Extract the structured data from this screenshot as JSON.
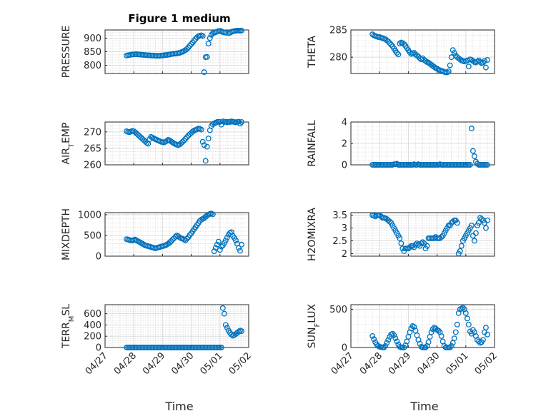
{
  "figure": {
    "title": "Figure 1 medium",
    "xlabel": "Time",
    "x_ticks": [
      "04/27",
      "04/28",
      "04/29",
      "04/30",
      "05/01",
      "05/02"
    ],
    "marker_color": "#0072BD"
  },
  "chart_data": [
    {
      "type": "scatter",
      "ylabel": "PRESSURE",
      "ylim": [
        770,
        930
      ],
      "yticks": [
        "800",
        "850",
        "900"
      ],
      "grid": true,
      "x": [
        0.75,
        0.8,
        0.85,
        0.9,
        0.95,
        1.0,
        1.05,
        1.1,
        1.15,
        1.2,
        1.25,
        1.3,
        1.35,
        1.4,
        1.45,
        1.5,
        1.55,
        1.6,
        1.65,
        1.7,
        1.75,
        1.8,
        1.85,
        1.9,
        1.95,
        2.0,
        2.05,
        2.1,
        2.15,
        2.2,
        2.25,
        2.3,
        2.35,
        2.4,
        2.45,
        2.5,
        2.55,
        2.6,
        2.65,
        2.7,
        2.75,
        2.8,
        2.85,
        2.9,
        2.95,
        3.0,
        3.05,
        3.1,
        3.15,
        3.2,
        3.25,
        3.3,
        3.35,
        3.4,
        3.45,
        3.5,
        3.55,
        3.6,
        3.65,
        3.7,
        3.75,
        3.8,
        3.85,
        3.9,
        3.95,
        4.0,
        4.05,
        4.1,
        4.15,
        4.2,
        4.3,
        4.35,
        4.4,
        4.45,
        4.5,
        4.55,
        4.6,
        4.65,
        4.7,
        4.75
      ],
      "y": [
        836,
        837,
        838,
        839,
        840,
        840,
        841,
        841,
        840,
        840,
        839,
        839,
        838,
        838,
        837,
        837,
        837,
        836,
        836,
        836,
        835,
        835,
        835,
        835,
        836,
        836,
        837,
        838,
        838,
        839,
        840,
        841,
        842,
        843,
        843,
        844,
        845,
        846,
        848,
        850,
        853,
        856,
        860,
        866,
        872,
        878,
        884,
        891,
        897,
        903,
        907,
        909,
        910,
        908,
        775,
        830,
        831,
        880,
        900,
        912,
        918,
        920,
        922,
        924,
        926,
        927,
        925,
        922,
        921,
        920,
        918,
        920,
        923,
        925,
        926,
        927,
        928,
        928,
        927,
        928
      ]
    },
    {
      "type": "scatter",
      "ylabel": "THETA",
      "ylim": [
        277,
        285
      ],
      "yticks": [
        "280",
        "285"
      ],
      "grid": true,
      "x": [
        0.75,
        0.8,
        0.85,
        0.9,
        0.95,
        1.0,
        1.05,
        1.1,
        1.15,
        1.2,
        1.25,
        1.3,
        1.35,
        1.4,
        1.45,
        1.5,
        1.55,
        1.6,
        1.65,
        1.7,
        1.75,
        1.8,
        1.85,
        1.9,
        1.95,
        2.0,
        2.05,
        2.1,
        2.15,
        2.2,
        2.25,
        2.3,
        2.35,
        2.4,
        2.45,
        2.5,
        2.55,
        2.6,
        2.65,
        2.7,
        2.75,
        2.8,
        2.85,
        2.9,
        2.95,
        3.0,
        3.05,
        3.1,
        3.15,
        3.2,
        3.25,
        3.3,
        3.35,
        3.4,
        3.45,
        3.5,
        3.55,
        3.6,
        3.65,
        3.7,
        3.75,
        3.8,
        3.85,
        3.9,
        3.95,
        4.0,
        4.05,
        4.1,
        4.15,
        4.2,
        4.25,
        4.3,
        4.35,
        4.4,
        4.45,
        4.5,
        4.55,
        4.6,
        4.65,
        4.7,
        4.75
      ],
      "y": [
        284.2,
        284.0,
        283.9,
        283.8,
        283.7,
        283.7,
        283.6,
        283.5,
        283.4,
        283.3,
        283.1,
        282.9,
        282.6,
        282.3,
        282.0,
        281.6,
        281.2,
        280.8,
        280.5,
        282.5,
        282.7,
        282.6,
        282.4,
        282.1,
        281.7,
        281.3,
        280.9,
        280.6,
        280.7,
        280.8,
        280.5,
        280.3,
        280.1,
        279.8,
        279.6,
        279.8,
        279.5,
        279.3,
        279.1,
        279.0,
        278.8,
        278.6,
        278.4,
        278.2,
        278.0,
        277.9,
        277.7,
        277.6,
        277.5,
        277.4,
        277.3,
        277.2,
        277.2,
        277.4,
        278.5,
        280.0,
        281.3,
        280.8,
        280.3,
        280.0,
        279.8,
        279.6,
        279.4,
        279.3,
        279.2,
        279.3,
        279.4,
        278.3,
        279.6,
        279.5,
        279.3,
        279.1,
        279.0,
        279.2,
        279.4,
        279.1,
        278.9,
        279.0,
        279.3,
        278.1,
        279.5
      ]
    },
    {
      "type": "scatter",
      "ylabel": "AIR_TEMP",
      "ylim": [
        260,
        273
      ],
      "yticks": [
        "260",
        "265",
        "270"
      ],
      "grid": true,
      "x": [
        0.75,
        0.8,
        0.85,
        0.9,
        0.95,
        1.0,
        1.05,
        1.1,
        1.15,
        1.2,
        1.25,
        1.3,
        1.35,
        1.4,
        1.45,
        1.5,
        1.55,
        1.6,
        1.65,
        1.7,
        1.75,
        1.8,
        1.85,
        1.9,
        1.95,
        2.0,
        2.05,
        2.1,
        2.15,
        2.2,
        2.25,
        2.3,
        2.35,
        2.4,
        2.45,
        2.5,
        2.55,
        2.6,
        2.65,
        2.7,
        2.75,
        2.8,
        2.85,
        2.9,
        2.95,
        3.0,
        3.05,
        3.1,
        3.15,
        3.2,
        3.25,
        3.3,
        3.35,
        3.4,
        3.45,
        3.5,
        3.55,
        3.6,
        3.65,
        3.7,
        3.75,
        3.8,
        3.85,
        3.9,
        3.95,
        4.0,
        4.05,
        4.1,
        4.15,
        4.2,
        4.25,
        4.3,
        4.35,
        4.4,
        4.45,
        4.5,
        4.55,
        4.6,
        4.65,
        4.7,
        4.75
      ],
      "y": [
        270.2,
        270.0,
        269.9,
        270.1,
        270.3,
        270.2,
        269.9,
        269.5,
        269.1,
        268.7,
        268.3,
        267.9,
        267.5,
        267.1,
        266.7,
        266.4,
        267.8,
        268.5,
        268.3,
        268.0,
        267.8,
        267.6,
        267.4,
        267.2,
        267.0,
        266.9,
        266.8,
        267.0,
        267.3,
        267.6,
        267.4,
        267.1,
        266.8,
        266.5,
        266.3,
        266.1,
        266.0,
        266.2,
        266.6,
        267.0,
        267.4,
        267.9,
        268.4,
        268.9,
        269.3,
        269.7,
        270.1,
        270.4,
        270.6,
        270.8,
        271.0,
        270.9,
        270.7,
        267.0,
        266.0,
        261.2,
        265.5,
        268.0,
        270.5,
        271.8,
        272.3,
        272.6,
        272.8,
        273.0,
        273.1,
        273.0,
        272.2,
        273.2,
        273.0,
        273.1,
        272.9,
        273.1,
        273.0,
        273.2,
        273.1,
        273.0,
        272.9,
        273.0,
        273.1,
        272.5,
        273.0
      ]
    },
    {
      "type": "scatter",
      "ylabel": "RAINFALL",
      "ylim": [
        0,
        4
      ],
      "yticks": [
        "0",
        "2",
        "4"
      ],
      "grid": true,
      "x": [
        0.75,
        0.8,
        0.85,
        0.9,
        0.95,
        1.0,
        1.05,
        1.1,
        1.15,
        1.2,
        1.25,
        1.3,
        1.35,
        1.4,
        1.45,
        1.5,
        1.55,
        1.6,
        1.65,
        1.7,
        1.75,
        1.8,
        1.85,
        1.9,
        1.95,
        2.0,
        2.05,
        2.1,
        2.15,
        2.2,
        2.25,
        2.3,
        2.35,
        2.4,
        2.45,
        2.5,
        2.55,
        2.6,
        2.65,
        2.7,
        2.75,
        2.8,
        2.85,
        2.9,
        2.95,
        3.0,
        3.05,
        3.1,
        3.15,
        3.2,
        3.25,
        3.3,
        3.35,
        3.4,
        3.45,
        3.5,
        3.55,
        3.6,
        3.65,
        3.7,
        3.75,
        3.8,
        3.85,
        3.9,
        3.95,
        4.0,
        4.05,
        4.1,
        4.15,
        4.2,
        4.25,
        4.3,
        4.35,
        4.4,
        4.45,
        4.5,
        4.55,
        4.6,
        4.65,
        4.7,
        4.75
      ],
      "y": [
        0,
        0,
        0,
        0,
        0,
        0,
        0,
        0,
        0,
        0,
        0,
        0,
        0,
        0,
        0,
        0.05,
        0.05,
        0.1,
        0,
        0,
        0,
        0,
        0,
        0,
        0,
        0,
        0,
        0,
        0,
        0.05,
        0,
        0,
        0.05,
        0,
        0,
        0,
        0,
        0,
        0,
        0,
        0,
        0,
        0,
        0,
        0,
        0,
        0,
        0.05,
        0,
        0,
        0,
        0,
        0,
        0,
        0,
        0,
        0,
        0,
        0,
        0,
        0,
        0,
        0,
        0,
        0,
        0,
        0,
        0,
        0,
        3.4,
        1.3,
        0.8,
        0.3,
        0.1,
        0,
        0,
        0,
        0,
        0,
        0,
        0
      ]
    },
    {
      "type": "scatter",
      "ylabel": "MIXDEPTH",
      "ylim": [
        0,
        1050
      ],
      "yticks": [
        "0",
        "500",
        "1000"
      ],
      "grid": true,
      "x": [
        0.75,
        0.8,
        0.85,
        0.9,
        0.95,
        1.0,
        1.05,
        1.1,
        1.15,
        1.2,
        1.25,
        1.3,
        1.35,
        1.4,
        1.45,
        1.5,
        1.55,
        1.6,
        1.65,
        1.7,
        1.75,
        1.8,
        1.85,
        1.9,
        1.95,
        2.0,
        2.05,
        2.1,
        2.15,
        2.2,
        2.25,
        2.3,
        2.35,
        2.4,
        2.45,
        2.5,
        2.55,
        2.6,
        2.65,
        2.7,
        2.75,
        2.8,
        2.85,
        2.9,
        2.95,
        3.0,
        3.05,
        3.1,
        3.15,
        3.2,
        3.25,
        3.3,
        3.35,
        3.4,
        3.45,
        3.5,
        3.55,
        3.6,
        3.65,
        3.7,
        3.75,
        3.8,
        3.85,
        3.9,
        3.95,
        4.0,
        4.05,
        4.1,
        4.15,
        4.2,
        4.25,
        4.3,
        4.35,
        4.4,
        4.45,
        4.5,
        4.55,
        4.6,
        4.65,
        4.7,
        4.75
      ],
      "y": [
        410,
        400,
        390,
        380,
        380,
        390,
        400,
        380,
        360,
        340,
        320,
        300,
        280,
        260,
        250,
        240,
        230,
        220,
        210,
        200,
        190,
        200,
        210,
        220,
        230,
        240,
        250,
        260,
        280,
        300,
        330,
        360,
        400,
        430,
        470,
        500,
        480,
        450,
        430,
        420,
        400,
        380,
        420,
        460,
        510,
        550,
        600,
        650,
        700,
        750,
        800,
        850,
        880,
        900,
        920,
        950,
        980,
        1000,
        1020,
        1030,
        1010,
        120,
        200,
        280,
        350,
        150,
        230,
        260,
        320,
        380,
        450,
        520,
        560,
        580,
        490,
        440,
        380,
        300,
        200,
        130,
        280
      ]
    },
    {
      "type": "scatter",
      "ylabel": "H2OMIXRA",
      "ylim": [
        1.9,
        3.6
      ],
      "yticks": [
        "2",
        "2.5",
        "3",
        "3.5"
      ],
      "grid": true,
      "x": [
        0.75,
        0.8,
        0.85,
        0.9,
        0.95,
        1.0,
        1.05,
        1.1,
        1.15,
        1.2,
        1.25,
        1.3,
        1.35,
        1.4,
        1.45,
        1.5,
        1.55,
        1.6,
        1.65,
        1.7,
        1.75,
        1.8,
        1.85,
        1.9,
        1.95,
        2.0,
        2.05,
        2.1,
        2.15,
        2.2,
        2.25,
        2.3,
        2.35,
        2.4,
        2.45,
        2.5,
        2.55,
        2.6,
        2.65,
        2.7,
        2.75,
        2.8,
        2.85,
        2.9,
        2.95,
        3.0,
        3.05,
        3.1,
        3.15,
        3.2,
        3.25,
        3.3,
        3.35,
        3.4,
        3.45,
        3.5,
        3.55,
        3.6,
        3.65,
        3.7,
        3.75,
        3.8,
        3.85,
        3.9,
        3.95,
        4.0,
        4.05,
        4.1,
        4.15,
        4.2,
        4.25,
        4.3,
        4.35,
        4.4,
        4.45,
        4.5,
        4.55,
        4.6,
        4.65,
        4.7,
        4.75
      ],
      "y": [
        3.5,
        3.48,
        3.45,
        3.5,
        3.5,
        3.5,
        3.45,
        3.4,
        3.4,
        3.38,
        3.35,
        3.3,
        3.25,
        3.2,
        3.1,
        3.0,
        2.9,
        2.8,
        2.7,
        2.6,
        2.4,
        2.2,
        2.1,
        2.2,
        2.2,
        2.2,
        2.25,
        2.3,
        2.3,
        2.25,
        2.35,
        2.4,
        2.35,
        2.3,
        2.4,
        2.45,
        2.4,
        2.2,
        2.3,
        2.6,
        2.6,
        2.6,
        2.6,
        2.6,
        2.65,
        2.6,
        2.6,
        2.6,
        2.65,
        2.7,
        2.8,
        2.9,
        3.0,
        3.1,
        3.1,
        3.2,
        3.25,
        3.3,
        3.3,
        3.2,
        2.0,
        2.1,
        2.3,
        2.5,
        2.6,
        2.7,
        2.8,
        2.9,
        3.0,
        3.1,
        2.7,
        2.5,
        2.8,
        3.1,
        3.2,
        3.4,
        3.35,
        3.3,
        3.2,
        3.0,
        3.3
      ]
    },
    {
      "type": "scatter",
      "ylabel": "TERR_MSL",
      "ylim": [
        0,
        760
      ],
      "yticks": [
        "0",
        "200",
        "400",
        "600"
      ],
      "grid": true,
      "x": [
        0.75,
        0.8,
        0.85,
        0.9,
        0.95,
        1.0,
        1.05,
        1.1,
        1.15,
        1.2,
        1.25,
        1.3,
        1.35,
        1.4,
        1.45,
        1.5,
        1.55,
        1.6,
        1.65,
        1.7,
        1.75,
        1.8,
        1.85,
        1.9,
        1.95,
        2.0,
        2.05,
        2.1,
        2.15,
        2.2,
        2.25,
        2.3,
        2.35,
        2.4,
        2.45,
        2.5,
        2.55,
        2.6,
        2.65,
        2.7,
        2.75,
        2.8,
        2.85,
        2.9,
        2.95,
        3.0,
        3.05,
        3.1,
        3.15,
        3.2,
        3.25,
        3.3,
        3.35,
        3.4,
        3.45,
        3.5,
        3.55,
        3.6,
        3.65,
        3.7,
        3.75,
        3.8,
        3.85,
        3.9,
        3.95,
        4.0,
        4.05,
        4.1,
        4.15,
        4.2,
        4.25,
        4.3,
        4.35,
        4.4,
        4.45,
        4.5,
        4.55,
        4.6,
        4.65,
        4.7,
        4.75
      ],
      "y": [
        0,
        0,
        0,
        0,
        0,
        0,
        0,
        0,
        0,
        0,
        0,
        0,
        0,
        0,
        0,
        0,
        0,
        0,
        0,
        0,
        0,
        0,
        0,
        0,
        0,
        0,
        0,
        0,
        0,
        0,
        0,
        0,
        0,
        0,
        0,
        0,
        0,
        0,
        0,
        0,
        0,
        0,
        0,
        0,
        0,
        0,
        0,
        0,
        0,
        0,
        0,
        0,
        0,
        0,
        0,
        0,
        0,
        0,
        0,
        0,
        0,
        0,
        0,
        0,
        0,
        0,
        0,
        700,
        600,
        400,
        350,
        300,
        260,
        230,
        210,
        220,
        240,
        260,
        280,
        300,
        290
      ]
    },
    {
      "type": "scatter",
      "ylabel": "SUN_FLUX",
      "ylim": [
        0,
        560
      ],
      "yticks": [
        "0",
        "500"
      ],
      "grid": true,
      "x": [
        0.75,
        0.8,
        0.85,
        0.9,
        0.95,
        1.0,
        1.05,
        1.1,
        1.15,
        1.2,
        1.25,
        1.3,
        1.35,
        1.4,
        1.45,
        1.5,
        1.55,
        1.6,
        1.65,
        1.7,
        1.75,
        1.8,
        1.85,
        1.9,
        1.95,
        2.0,
        2.05,
        2.1,
        2.15,
        2.2,
        2.25,
        2.3,
        2.35,
        2.4,
        2.45,
        2.5,
        2.55,
        2.6,
        2.65,
        2.7,
        2.75,
        2.8,
        2.85,
        2.9,
        2.95,
        3.0,
        3.05,
        3.1,
        3.15,
        3.2,
        3.25,
        3.3,
        3.35,
        3.4,
        3.45,
        3.5,
        3.55,
        3.6,
        3.65,
        3.7,
        3.75,
        3.8,
        3.85,
        3.9,
        3.95,
        4.0,
        4.05,
        4.1,
        4.15,
        4.2,
        4.25,
        4.3,
        4.35,
        4.4,
        4.45,
        4.5,
        4.55,
        4.6,
        4.65,
        4.7,
        4.75
      ],
      "y": [
        150,
        110,
        70,
        40,
        20,
        10,
        5,
        0,
        0,
        20,
        60,
        100,
        140,
        170,
        180,
        160,
        120,
        80,
        40,
        10,
        0,
        0,
        0,
        30,
        80,
        140,
        200,
        250,
        280,
        270,
        220,
        160,
        100,
        50,
        10,
        0,
        0,
        0,
        20,
        70,
        140,
        200,
        240,
        260,
        250,
        230,
        220,
        200,
        150,
        80,
        20,
        0,
        0,
        0,
        0,
        20,
        60,
        120,
        200,
        300,
        450,
        500,
        510,
        520,
        500,
        450,
        380,
        300,
        210,
        180,
        230,
        200,
        150,
        100,
        80,
        60,
        70,
        100,
        200,
        260,
        170
      ]
    }
  ]
}
